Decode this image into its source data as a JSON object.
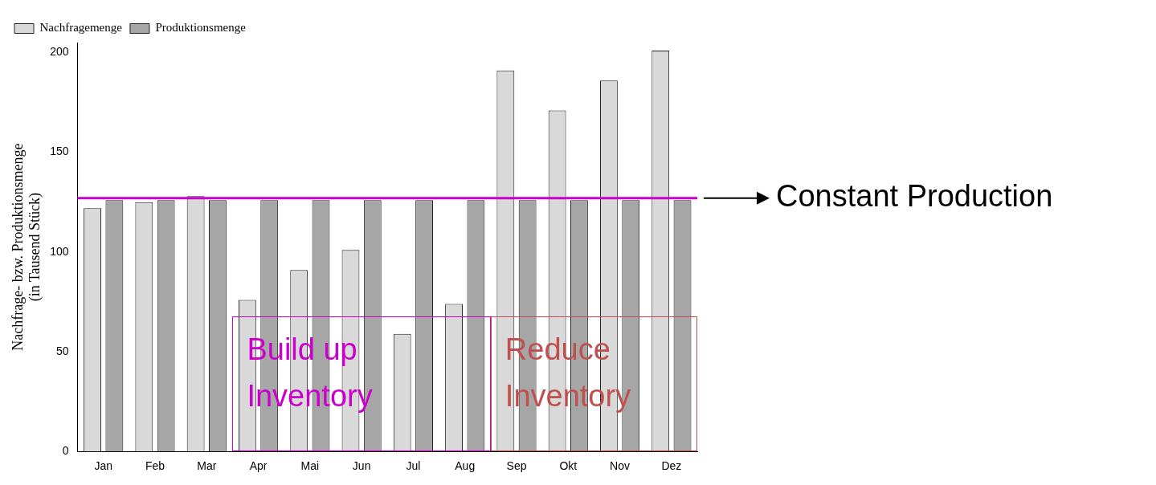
{
  "chart_data": {
    "type": "bar",
    "ylabel": "Nachfrage- bzw. Produktionsmenge\n(in Tausend Stück)",
    "categories": [
      "Jan",
      "Feb",
      "Mar",
      "Apr",
      "Mai",
      "Jun",
      "Jul",
      "Aug",
      "Sep",
      "Okt",
      "Nov",
      "Dez"
    ],
    "series": [
      {
        "name": "Nachfragemenge",
        "color": "#d9d9d9",
        "values": [
          122,
          125,
          128,
          76,
          91,
          101,
          59,
          74,
          191,
          171,
          186,
          201
        ]
      },
      {
        "name": "Produktionsmenge",
        "color": "#a6a6a6",
        "values": [
          126,
          126,
          126,
          126,
          126,
          126,
          126,
          126,
          126,
          126,
          126,
          126
        ]
      }
    ],
    "ylim": [
      0,
      205
    ],
    "yticks": [
      0,
      50,
      100,
      150,
      200
    ],
    "grid": false,
    "legend": "top left",
    "ref_lines": [
      {
        "axis": "y",
        "value": 127,
        "label": "Constant Production",
        "color": "#cc00cc"
      }
    ],
    "annotations": [
      "Build up Inventory",
      "Reduce Inventory"
    ]
  }
}
